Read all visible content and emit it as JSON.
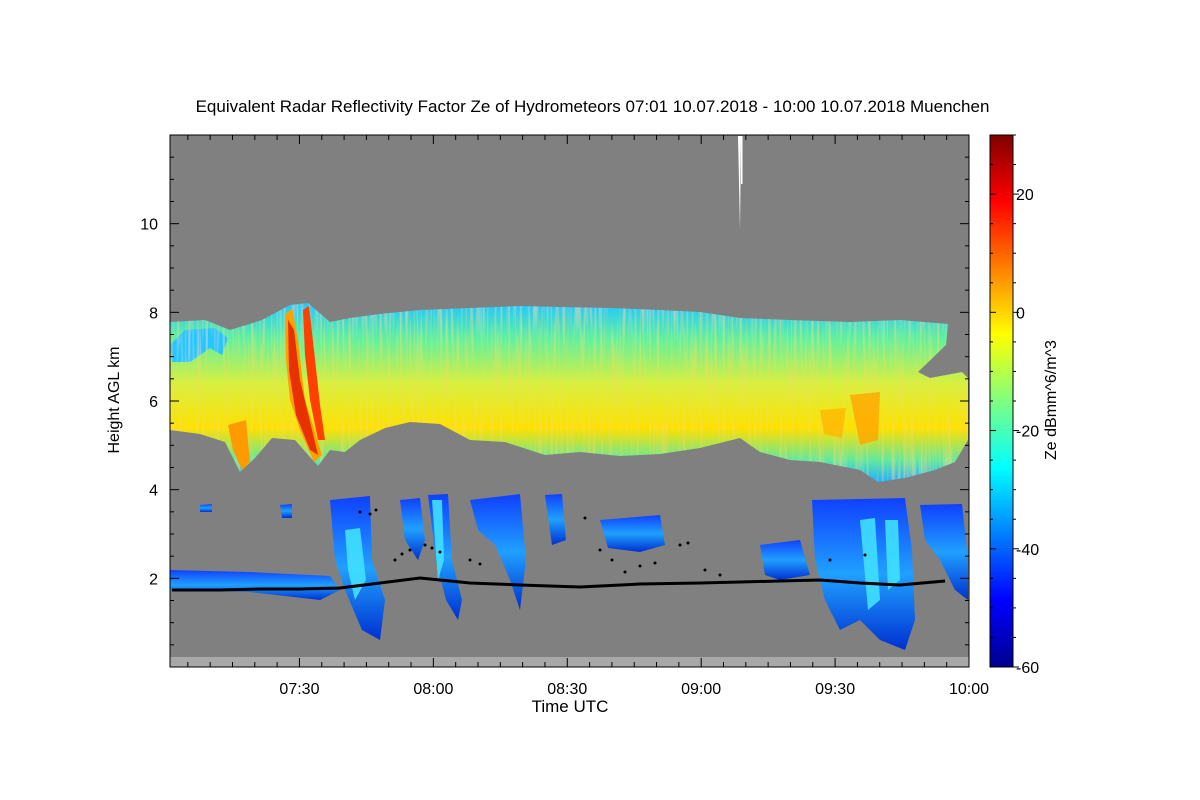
{
  "chart_data": {
    "type": "heatmap",
    "title": "Equivalent Radar Reflectivity Factor Ze of Hydrometeors   07:01 10.07.2018 - 10:00 10.07.2018 Muenchen",
    "xlabel": "Time UTC",
    "ylabel": "Height AGL km",
    "x_tick_labels": [
      "07:30",
      "08:00",
      "08:30",
      "09:00",
      "09:30",
      "10:00"
    ],
    "y_tick_labels": [
      "2",
      "4",
      "6",
      "8",
      "10"
    ],
    "xlim": [
      "07:01",
      "10:00"
    ],
    "ylim": [
      0,
      12
    ],
    "colorbar": {
      "label": "Ze dBmm^6/m^3",
      "range": [
        -60,
        30
      ],
      "tick_labels": [
        "-60",
        "-40",
        "-20",
        "0",
        "20"
      ],
      "colormap": "jet"
    },
    "background_color": "#808080",
    "features": {
      "upper_cloud_layer": {
        "time_start": "07:01",
        "time_end": "09:57",
        "base_km": 5.0,
        "top_km": 8.0,
        "peak_Ze_dBZ": 20
      },
      "lower_clouds": {
        "base_km": 1.8,
        "top_km": 3.8,
        "Ze_range_dBZ": [
          -50,
          -25
        ]
      },
      "cloud_base_line_km": 1.8
    }
  }
}
